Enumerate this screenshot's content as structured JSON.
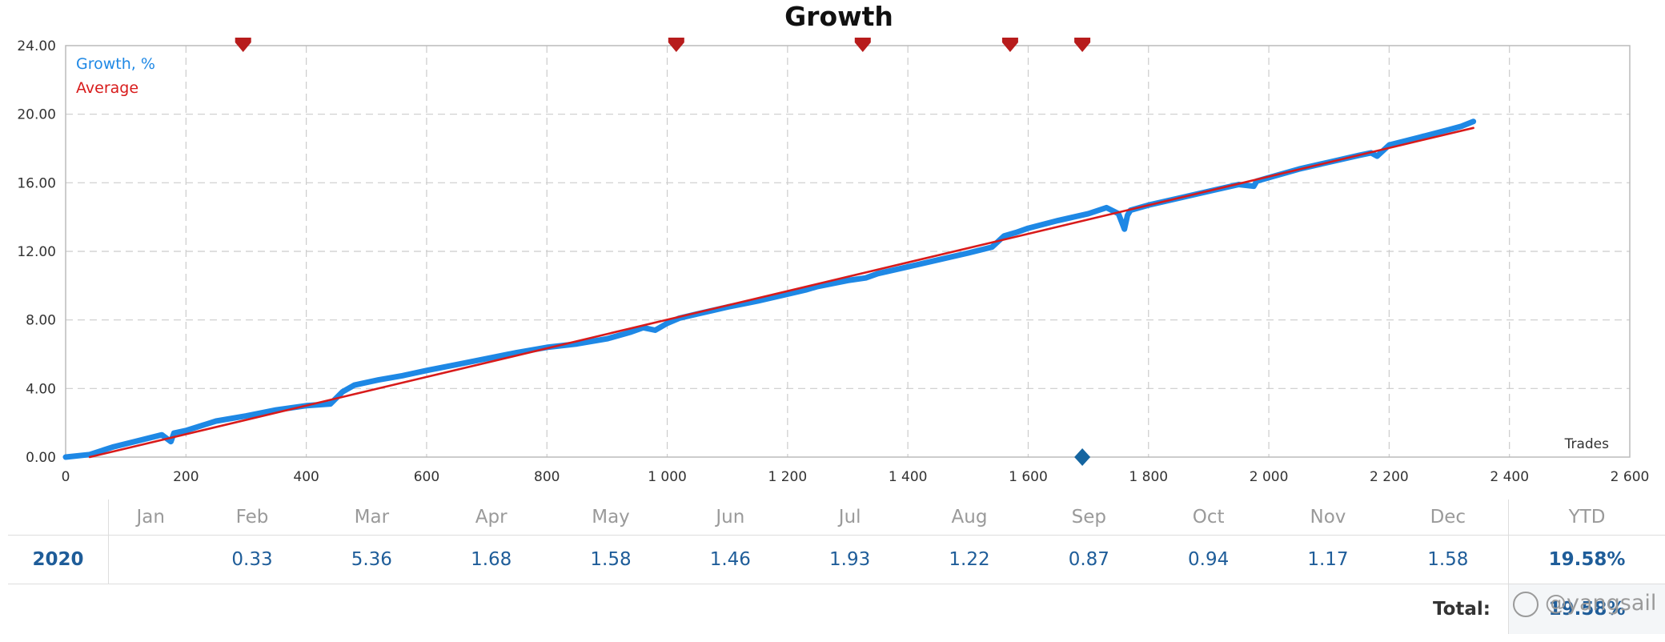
{
  "chart_data": {
    "type": "line",
    "title": "Growth",
    "xlabel": "Trades",
    "ylabel": "",
    "xlim": [
      0,
      2600
    ],
    "ylim": [
      0,
      24
    ],
    "x_ticks": [
      0,
      200,
      400,
      600,
      800,
      1000,
      1200,
      1400,
      1600,
      1800,
      2000,
      2200,
      2400,
      2600
    ],
    "x_tick_labels": [
      "0",
      "200",
      "400",
      "600",
      "800",
      "1 000",
      "1 200",
      "1 400",
      "1 600",
      "1 800",
      "2 000",
      "2 200",
      "2 400",
      "2 600"
    ],
    "y_ticks": [
      0,
      4,
      8,
      12,
      16,
      20,
      24
    ],
    "y_tick_labels": [
      "0.00",
      "4.00",
      "8.00",
      "12.00",
      "16.00",
      "20.00",
      "24.00"
    ],
    "grid": true,
    "legend": "top-left",
    "series": [
      {
        "name": "Growth, %",
        "color": "#1e88e5",
        "x": [
          0,
          40,
          80,
          120,
          160,
          175,
          180,
          200,
          250,
          300,
          350,
          400,
          440,
          460,
          480,
          520,
          560,
          600,
          650,
          700,
          750,
          800,
          850,
          900,
          940,
          960,
          980,
          1000,
          1020,
          1050,
          1100,
          1150,
          1200,
          1230,
          1250,
          1300,
          1330,
          1350,
          1400,
          1450,
          1500,
          1540,
          1560,
          1580,
          1600,
          1650,
          1700,
          1730,
          1750,
          1760,
          1765,
          1770,
          1780,
          1800,
          1850,
          1900,
          1950,
          1975,
          1980,
          2000,
          2050,
          2100,
          2150,
          2170,
          2180,
          2200,
          2250,
          2300,
          2320,
          2340
        ],
        "values": [
          0.0,
          0.15,
          0.6,
          0.95,
          1.3,
          0.9,
          1.4,
          1.55,
          2.1,
          2.4,
          2.75,
          3.0,
          3.1,
          3.8,
          4.2,
          4.5,
          4.75,
          5.05,
          5.4,
          5.75,
          6.1,
          6.4,
          6.6,
          6.9,
          7.3,
          7.55,
          7.4,
          7.8,
          8.1,
          8.35,
          8.75,
          9.1,
          9.5,
          9.75,
          9.95,
          10.3,
          10.45,
          10.7,
          11.1,
          11.5,
          11.9,
          12.25,
          12.9,
          13.1,
          13.35,
          13.8,
          14.2,
          14.55,
          14.2,
          13.3,
          14.1,
          14.4,
          14.5,
          14.7,
          15.1,
          15.5,
          15.9,
          15.8,
          16.1,
          16.3,
          16.8,
          17.2,
          17.6,
          17.75,
          17.55,
          18.2,
          18.65,
          19.1,
          19.3,
          19.58
        ]
      },
      {
        "name": "Average",
        "color": "#d81b1b",
        "x": [
          40,
          2340
        ],
        "values": [
          0.0,
          19.2
        ]
      }
    ],
    "markers_top": [
      295,
      1015,
      1325,
      1570,
      1690
    ],
    "markers_bottom": [
      1690
    ]
  },
  "table": {
    "months": [
      "Jan",
      "Feb",
      "Mar",
      "Apr",
      "May",
      "Jun",
      "Jul",
      "Aug",
      "Sep",
      "Oct",
      "Nov",
      "Dec"
    ],
    "ytd_label": "YTD",
    "year": "2020",
    "values": [
      "",
      "0.33",
      "5.36",
      "1.68",
      "1.58",
      "1.46",
      "1.93",
      "1.22",
      "0.87",
      "0.94",
      "1.17",
      "1.58"
    ],
    "ytd_value": "19.58%",
    "total_label": "Total:",
    "total_value": "19.58%"
  },
  "watermark": "@yangsail",
  "colors": {
    "growth": "#1e88e5",
    "average": "#d81b1b",
    "marker_top": "#b71c1c",
    "marker_bottom": "#1565a0"
  }
}
